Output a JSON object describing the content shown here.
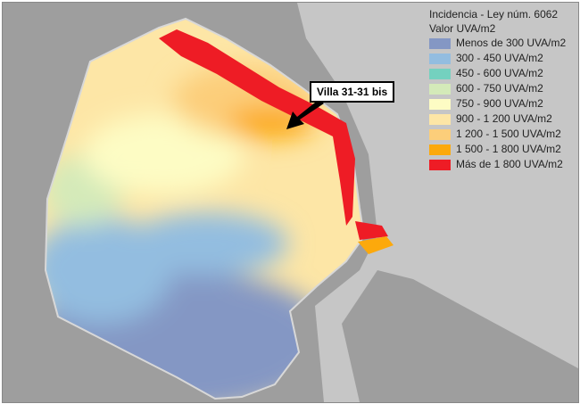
{
  "legend": {
    "title": "Incidencia - Ley núm.  6062",
    "subtitle": "Valor UVA/m2",
    "items": [
      {
        "label": "Menos de 300 UVA/m2",
        "color": "#8497c4"
      },
      {
        "label": "300 - 450 UVA/m2",
        "color": "#93bde0"
      },
      {
        "label": "450 - 600 UVA/m2",
        "color": "#74d1bf"
      },
      {
        "label": "600 - 750 UVA/m2",
        "color": "#d4eab9"
      },
      {
        "label": "750 - 900 UVA/m2",
        "color": "#fdfcc4"
      },
      {
        "label": "900 - 1 200 UVA/m2",
        "color": "#fde6a6"
      },
      {
        "label": "1 200 - 1 500 UVA/m2",
        "color": "#fcce7a"
      },
      {
        "label": "1 500 - 1 800 UVA/m2",
        "color": "#fca90c"
      },
      {
        "label": "Más de 1 800 UVA/m2",
        "color": "#ee1c25"
      }
    ]
  },
  "callout": {
    "label": "Villa 31-31 bis"
  },
  "colors": {
    "land": "#9e9e9e",
    "water": "#c6c6c6"
  }
}
